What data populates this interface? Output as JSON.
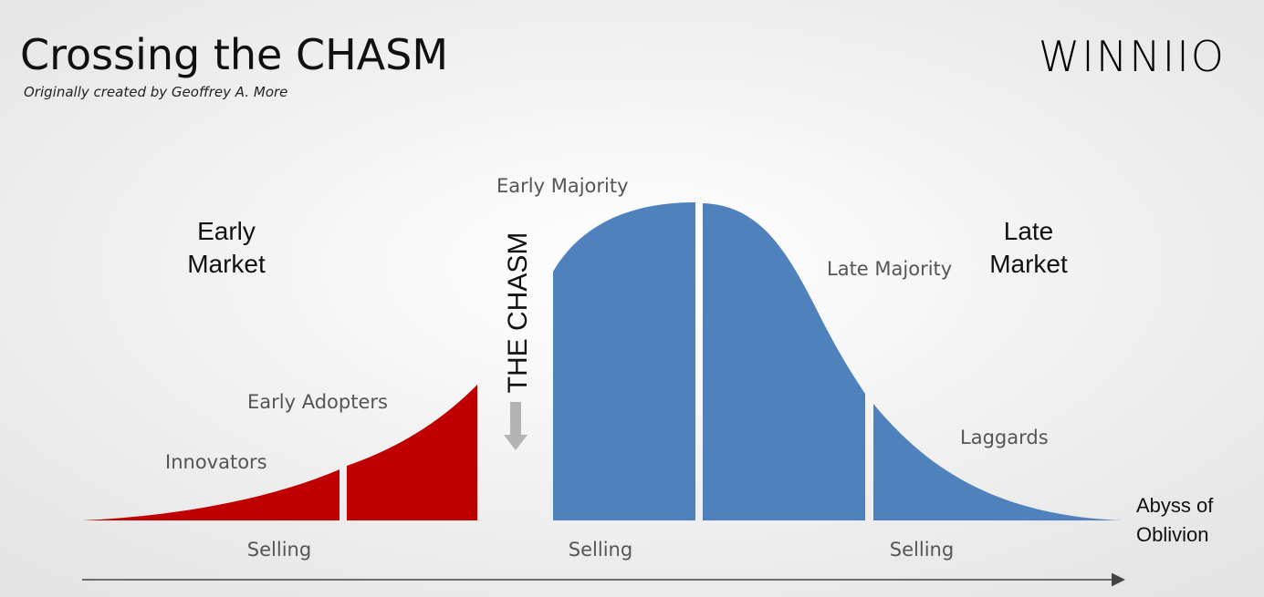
{
  "header": {
    "title": "Crossing the CHASM",
    "subtitle": "Originally created by Geoffrey A. More",
    "logo": "WINNIIO"
  },
  "markets": {
    "early": [
      "Early",
      "Market"
    ],
    "late": [
      "Late",
      "Market"
    ]
  },
  "segments": {
    "innovators": "Innovators",
    "early_adopters": "Early Adopters",
    "early_majority": "Early Majority",
    "late_majority": "Late Majority",
    "laggards": "Laggards"
  },
  "chasm": "THE CHASM",
  "selling": [
    "Selling",
    "Selling",
    "Selling"
  ],
  "abyss": [
    "Abyss of",
    "Oblivion"
  ]
}
